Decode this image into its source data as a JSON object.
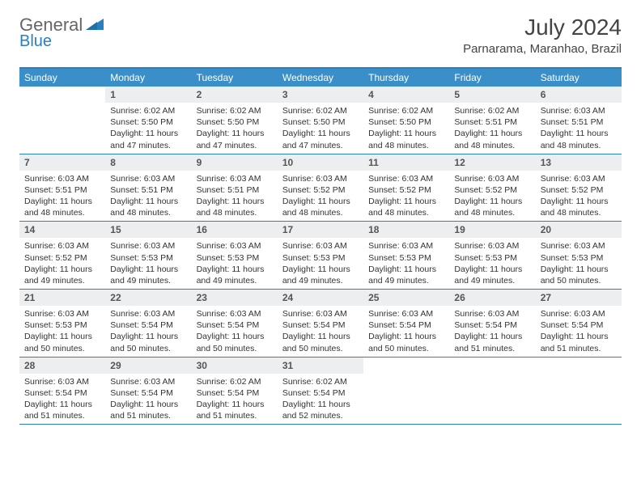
{
  "logo": {
    "gray": "General",
    "blue": "Blue"
  },
  "title": "July 2024",
  "location": "Parnarama, Maranhao, Brazil",
  "colors": {
    "header_bar": "#3b8fc9",
    "divider": "#2a7fbf",
    "daynum_bg": "#eceef0",
    "text": "#333333",
    "title_text": "#444444"
  },
  "dow": [
    "Sunday",
    "Monday",
    "Tuesday",
    "Wednesday",
    "Thursday",
    "Friday",
    "Saturday"
  ],
  "weeks": [
    [
      {
        "n": "",
        "sr": "",
        "ss": "",
        "dl": ""
      },
      {
        "n": "1",
        "sr": "Sunrise: 6:02 AM",
        "ss": "Sunset: 5:50 PM",
        "dl": "Daylight: 11 hours and 47 minutes."
      },
      {
        "n": "2",
        "sr": "Sunrise: 6:02 AM",
        "ss": "Sunset: 5:50 PM",
        "dl": "Daylight: 11 hours and 47 minutes."
      },
      {
        "n": "3",
        "sr": "Sunrise: 6:02 AM",
        "ss": "Sunset: 5:50 PM",
        "dl": "Daylight: 11 hours and 47 minutes."
      },
      {
        "n": "4",
        "sr": "Sunrise: 6:02 AM",
        "ss": "Sunset: 5:50 PM",
        "dl": "Daylight: 11 hours and 48 minutes."
      },
      {
        "n": "5",
        "sr": "Sunrise: 6:02 AM",
        "ss": "Sunset: 5:51 PM",
        "dl": "Daylight: 11 hours and 48 minutes."
      },
      {
        "n": "6",
        "sr": "Sunrise: 6:03 AM",
        "ss": "Sunset: 5:51 PM",
        "dl": "Daylight: 11 hours and 48 minutes."
      }
    ],
    [
      {
        "n": "7",
        "sr": "Sunrise: 6:03 AM",
        "ss": "Sunset: 5:51 PM",
        "dl": "Daylight: 11 hours and 48 minutes."
      },
      {
        "n": "8",
        "sr": "Sunrise: 6:03 AM",
        "ss": "Sunset: 5:51 PM",
        "dl": "Daylight: 11 hours and 48 minutes."
      },
      {
        "n": "9",
        "sr": "Sunrise: 6:03 AM",
        "ss": "Sunset: 5:51 PM",
        "dl": "Daylight: 11 hours and 48 minutes."
      },
      {
        "n": "10",
        "sr": "Sunrise: 6:03 AM",
        "ss": "Sunset: 5:52 PM",
        "dl": "Daylight: 11 hours and 48 minutes."
      },
      {
        "n": "11",
        "sr": "Sunrise: 6:03 AM",
        "ss": "Sunset: 5:52 PM",
        "dl": "Daylight: 11 hours and 48 minutes."
      },
      {
        "n": "12",
        "sr": "Sunrise: 6:03 AM",
        "ss": "Sunset: 5:52 PM",
        "dl": "Daylight: 11 hours and 48 minutes."
      },
      {
        "n": "13",
        "sr": "Sunrise: 6:03 AM",
        "ss": "Sunset: 5:52 PM",
        "dl": "Daylight: 11 hours and 48 minutes."
      }
    ],
    [
      {
        "n": "14",
        "sr": "Sunrise: 6:03 AM",
        "ss": "Sunset: 5:52 PM",
        "dl": "Daylight: 11 hours and 49 minutes."
      },
      {
        "n": "15",
        "sr": "Sunrise: 6:03 AM",
        "ss": "Sunset: 5:53 PM",
        "dl": "Daylight: 11 hours and 49 minutes."
      },
      {
        "n": "16",
        "sr": "Sunrise: 6:03 AM",
        "ss": "Sunset: 5:53 PM",
        "dl": "Daylight: 11 hours and 49 minutes."
      },
      {
        "n": "17",
        "sr": "Sunrise: 6:03 AM",
        "ss": "Sunset: 5:53 PM",
        "dl": "Daylight: 11 hours and 49 minutes."
      },
      {
        "n": "18",
        "sr": "Sunrise: 6:03 AM",
        "ss": "Sunset: 5:53 PM",
        "dl": "Daylight: 11 hours and 49 minutes."
      },
      {
        "n": "19",
        "sr": "Sunrise: 6:03 AM",
        "ss": "Sunset: 5:53 PM",
        "dl": "Daylight: 11 hours and 49 minutes."
      },
      {
        "n": "20",
        "sr": "Sunrise: 6:03 AM",
        "ss": "Sunset: 5:53 PM",
        "dl": "Daylight: 11 hours and 50 minutes."
      }
    ],
    [
      {
        "n": "21",
        "sr": "Sunrise: 6:03 AM",
        "ss": "Sunset: 5:53 PM",
        "dl": "Daylight: 11 hours and 50 minutes."
      },
      {
        "n": "22",
        "sr": "Sunrise: 6:03 AM",
        "ss": "Sunset: 5:54 PM",
        "dl": "Daylight: 11 hours and 50 minutes."
      },
      {
        "n": "23",
        "sr": "Sunrise: 6:03 AM",
        "ss": "Sunset: 5:54 PM",
        "dl": "Daylight: 11 hours and 50 minutes."
      },
      {
        "n": "24",
        "sr": "Sunrise: 6:03 AM",
        "ss": "Sunset: 5:54 PM",
        "dl": "Daylight: 11 hours and 50 minutes."
      },
      {
        "n": "25",
        "sr": "Sunrise: 6:03 AM",
        "ss": "Sunset: 5:54 PM",
        "dl": "Daylight: 11 hours and 50 minutes."
      },
      {
        "n": "26",
        "sr": "Sunrise: 6:03 AM",
        "ss": "Sunset: 5:54 PM",
        "dl": "Daylight: 11 hours and 51 minutes."
      },
      {
        "n": "27",
        "sr": "Sunrise: 6:03 AM",
        "ss": "Sunset: 5:54 PM",
        "dl": "Daylight: 11 hours and 51 minutes."
      }
    ],
    [
      {
        "n": "28",
        "sr": "Sunrise: 6:03 AM",
        "ss": "Sunset: 5:54 PM",
        "dl": "Daylight: 11 hours and 51 minutes."
      },
      {
        "n": "29",
        "sr": "Sunrise: 6:03 AM",
        "ss": "Sunset: 5:54 PM",
        "dl": "Daylight: 11 hours and 51 minutes."
      },
      {
        "n": "30",
        "sr": "Sunrise: 6:02 AM",
        "ss": "Sunset: 5:54 PM",
        "dl": "Daylight: 11 hours and 51 minutes."
      },
      {
        "n": "31",
        "sr": "Sunrise: 6:02 AM",
        "ss": "Sunset: 5:54 PM",
        "dl": "Daylight: 11 hours and 52 minutes."
      },
      {
        "n": "",
        "sr": "",
        "ss": "",
        "dl": ""
      },
      {
        "n": "",
        "sr": "",
        "ss": "",
        "dl": ""
      },
      {
        "n": "",
        "sr": "",
        "ss": "",
        "dl": ""
      }
    ]
  ]
}
